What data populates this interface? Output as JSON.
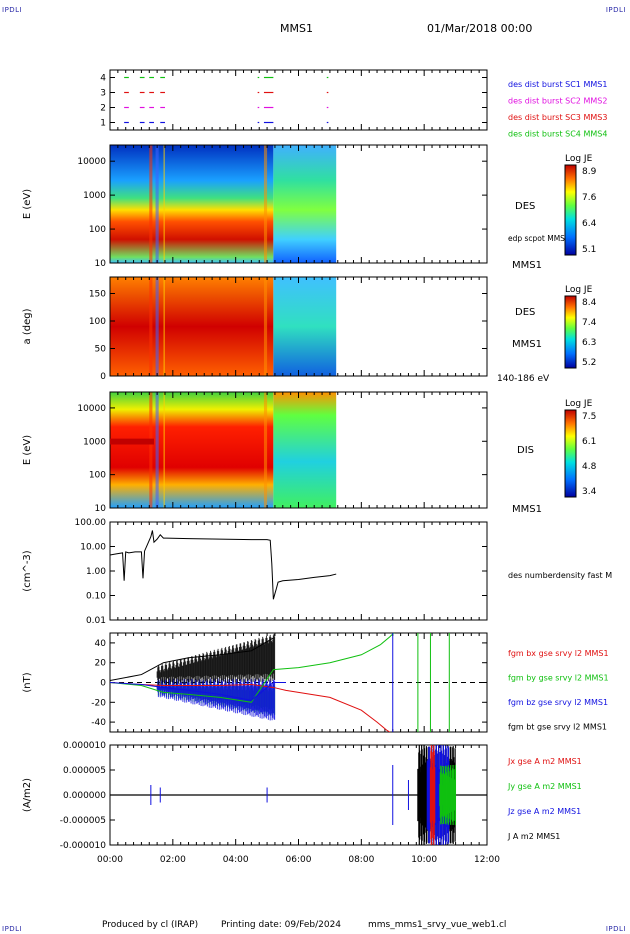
{
  "corners": {
    "top_left": "IPDLI",
    "top_right": "IPDLI",
    "bottom_left": "IPDLI",
    "bottom_right": "IPDLI"
  },
  "header": {
    "spacecraft": "MMS1",
    "datetime": "01/Mar/2018 00:00"
  },
  "footer": {
    "produced": "Produced by cl (IRAP)",
    "printing": "Printing date: 09/Feb/2024",
    "product": "mms_mms1_srvy_vue_web1.cl"
  },
  "colors": {
    "red": "#e01010",
    "green": "#10c010",
    "blue": "#1010e0",
    "magenta": "#e010e0",
    "black": "#000000"
  },
  "chart_data": [
    {
      "type": "scatter",
      "panel": "burst-availability",
      "x_ticks": [
        "00:00",
        "02:00",
        "04:00",
        "06:00",
        "08:00",
        "10:00",
        "12:00"
      ],
      "xlim_hours": [
        0,
        12
      ],
      "y_ticks": [
        "1",
        "2",
        "3",
        "4"
      ],
      "ylim": [
        0.5,
        4.5
      ],
      "series": [
        {
          "name": "des dist burst SC1 MMS1",
          "color": "#1010e0",
          "y": 1
        },
        {
          "name": "des dist burst SC2 MMS2",
          "color": "#e010e0",
          "y": 2
        },
        {
          "name": "des dist burst SC3 MMS3",
          "color": "#e01010",
          "y": 3
        },
        {
          "name": "des dist burst SC4 MMS4",
          "color": "#10c010",
          "y": 4
        }
      ],
      "intervals_hours": [
        [
          0.45,
          0.6
        ],
        [
          0.95,
          1.1
        ],
        [
          1.25,
          1.4
        ],
        [
          1.6,
          1.75
        ],
        [
          4.7,
          4.75
        ],
        [
          4.9,
          5.2
        ],
        [
          6.9,
          6.95
        ]
      ]
    },
    {
      "type": "heatmap",
      "panel": "des-energy-spectrogram",
      "ylabel": "E (eV)",
      "y_scale": "log",
      "y_ticks": [
        "10",
        "100",
        "1000",
        "10000"
      ],
      "colorbar": {
        "label": "Log JE",
        "ticks": [
          "8.9",
          "7.6",
          "6.4",
          "5.1"
        ]
      },
      "labels": [
        "DES",
        "edp scpot MMS1",
        "MMS1"
      ],
      "data_end_hours": 7.2
    },
    {
      "type": "heatmap",
      "panel": "des-pitch-angle",
      "ylabel": "a (deg)",
      "y_ticks": [
        "0",
        "50",
        "100",
        "150"
      ],
      "ylim": [
        0,
        180
      ],
      "colorbar": {
        "label": "Log JE",
        "ticks": [
          "8.4",
          "7.4",
          "6.3",
          "5.2"
        ]
      },
      "labels": [
        "DES",
        "MMS1",
        "140-186 eV"
      ],
      "data_end_hours": 7.2
    },
    {
      "type": "heatmap",
      "panel": "dis-energy-spectrogram",
      "ylabel": "E (eV)",
      "y_scale": "log",
      "y_ticks": [
        "10",
        "100",
        "1000",
        "10000"
      ],
      "colorbar": {
        "label": "Log JE",
        "ticks": [
          "7.5",
          "6.1",
          "4.8",
          "3.4"
        ]
      },
      "labels": [
        "DIS",
        "MMS1"
      ],
      "data_end_hours": 7.2
    },
    {
      "type": "line",
      "panel": "electron-density",
      "ylabel": "(cm^-3)",
      "y_scale": "log",
      "y_ticks": [
        "0.01",
        "0.10",
        "1.00",
        "10.00",
        "100.00"
      ],
      "ylim": [
        0.01,
        100
      ],
      "series": [
        {
          "name": "des numberdensity fast M",
          "color": "#000000",
          "x": [
            0.0,
            0.2,
            0.4,
            0.45,
            0.5,
            0.6,
            0.8,
            1.0,
            1.05,
            1.1,
            1.3,
            1.35,
            1.4,
            1.5,
            1.6,
            1.7,
            1.8,
            2.5,
            3.5,
            4.5,
            5.0,
            5.1,
            5.15,
            5.2,
            5.25,
            5.3,
            5.35,
            5.5,
            6.0,
            6.5,
            7.0,
            7.2
          ],
          "y": [
            4.5,
            5,
            5.5,
            0.4,
            6,
            5.5,
            6,
            6,
            0.5,
            6.5,
            25,
            45,
            15,
            20,
            30,
            22,
            22,
            21,
            20,
            19,
            19,
            18,
            2,
            0.07,
            0.12,
            0.2,
            0.35,
            0.4,
            0.45,
            0.55,
            0.65,
            0.75
          ]
        }
      ]
    },
    {
      "type": "line",
      "panel": "magnetic-field",
      "ylabel": "(nT)",
      "y_ticks": [
        "-40",
        "-20",
        "0",
        "20",
        "40"
      ],
      "ylim": [
        -50,
        50
      ],
      "series": [
        {
          "name": "fgm bx gse srvy l2 MMS1",
          "color": "#e01010",
          "x": [
            0,
            1,
            1.7,
            2.5,
            3.5,
            4.5,
            5.2,
            5.6,
            6,
            7,
            8,
            8.5,
            8.8,
            9
          ],
          "y": [
            0,
            -2,
            -3,
            -3,
            -3,
            -2,
            -5,
            -8,
            -10,
            -15,
            -28,
            -40,
            -48,
            -52
          ]
        },
        {
          "name": "fgm by gse srvy l2 MMS1",
          "color": "#10c010",
          "x": [
            0,
            1,
            1.7,
            2.5,
            3.5,
            4.5,
            5.2,
            5.6,
            6,
            7,
            8,
            8.6,
            8.9,
            9.1
          ],
          "y": [
            0,
            -3,
            -10,
            -12,
            -15,
            -20,
            13,
            14,
            15,
            20,
            28,
            38,
            46,
            52
          ]
        },
        {
          "name": "fgm bz gse srvy l2 MMS1",
          "color": "#1010e0",
          "x": [
            0,
            1,
            1.7,
            2.5,
            3.5,
            4.5,
            5.2,
            5.6
          ],
          "y": [
            0,
            -2,
            -5,
            -8,
            -12,
            -18,
            0,
            0
          ]
        },
        {
          "name": "fgm bt gse srvy l2 MMS1",
          "color": "#000000",
          "x": [
            0,
            1,
            1.7,
            2.5,
            3.5,
            4.5,
            5.2
          ],
          "y": [
            2,
            8,
            20,
            25,
            28,
            32,
            45
          ]
        }
      ]
    },
    {
      "type": "line",
      "panel": "current-density",
      "ylabel": "(A/m2)",
      "y_ticks": [
        "-0.000010",
        "-0.000005",
        "0.000000",
        "0.000005",
        "0.000010"
      ],
      "ylim": [
        -1e-05,
        1e-05
      ],
      "series": [
        {
          "name": "Jx gse A m2 MMS1",
          "color": "#e01010"
        },
        {
          "name": "Jy gse A m2 MMS1",
          "color": "#10c010"
        },
        {
          "name": "Jz gse A m2 MMS1",
          "color": "#1010e0"
        },
        {
          "name": "J A m2 MMS1",
          "color": "#000000"
        }
      ]
    }
  ]
}
